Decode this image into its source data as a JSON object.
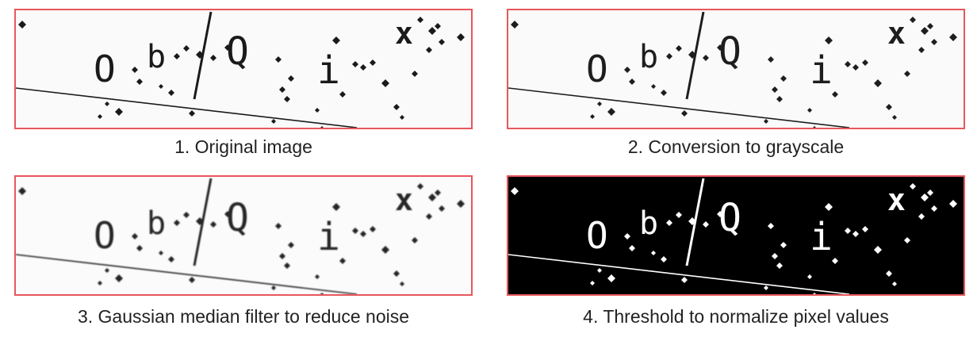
{
  "captcha_text": {
    "c1": "O",
    "c2": "b",
    "c3": "Q",
    "c4": "i",
    "c5": "x"
  },
  "panels": [
    {
      "caption": "1. Original image",
      "stage": "original",
      "background": "#fafafa",
      "ink": "#1a1a1a"
    },
    {
      "caption": "2. Conversion to grayscale",
      "stage": "grayscale",
      "background": "#fafafa",
      "ink": "#1e1e1e"
    },
    {
      "caption": "3. Gaussian median filter to reduce noise",
      "stage": "filtered",
      "background": "#fbfbfb",
      "ink": "#262626"
    },
    {
      "caption": "4. Threshold to normalize pixel values",
      "stage": "threshold",
      "background": "#000000",
      "ink": "#ffffff"
    }
  ],
  "colors": {
    "frame": "#e8575a",
    "caption_text": "#222222"
  }
}
